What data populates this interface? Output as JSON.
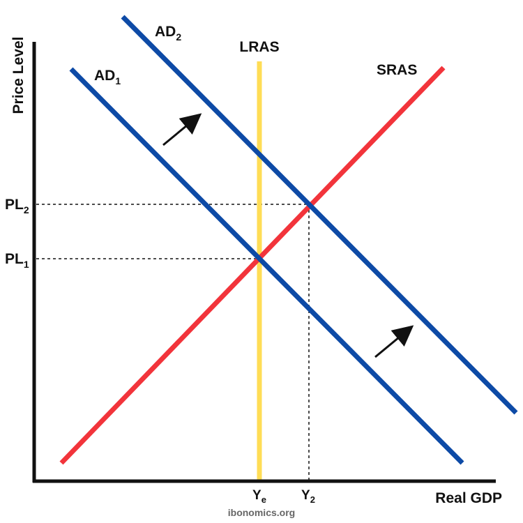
{
  "diagram": {
    "axes": {
      "y_label": "Price Level",
      "x_label": "Real GDP"
    },
    "curves": {
      "ad1": {
        "label": "AD",
        "subscript": "1",
        "color": "#0d4aa6"
      },
      "ad2": {
        "label": "AD",
        "subscript": "2",
        "color": "#0d4aa6"
      },
      "lras": {
        "label": "LRAS",
        "color": "#ffdd55"
      },
      "sras": {
        "label": "SRAS",
        "color": "#f2343b"
      }
    },
    "price_levels": {
      "pl1": {
        "label": "PL",
        "subscript": "1"
      },
      "pl2": {
        "label": "PL",
        "subscript": "2"
      }
    },
    "output_levels": {
      "ye": {
        "label": "Y",
        "subscript": "e"
      },
      "y2": {
        "label": "Y",
        "subscript": "2"
      }
    },
    "shift_arrows": {
      "count": 2,
      "direction": "rightward (AD1 to AD2)",
      "color": "#111111"
    },
    "axis_color": "#111111",
    "guide_color": "#111111",
    "watermark": "ibonomics.org"
  }
}
